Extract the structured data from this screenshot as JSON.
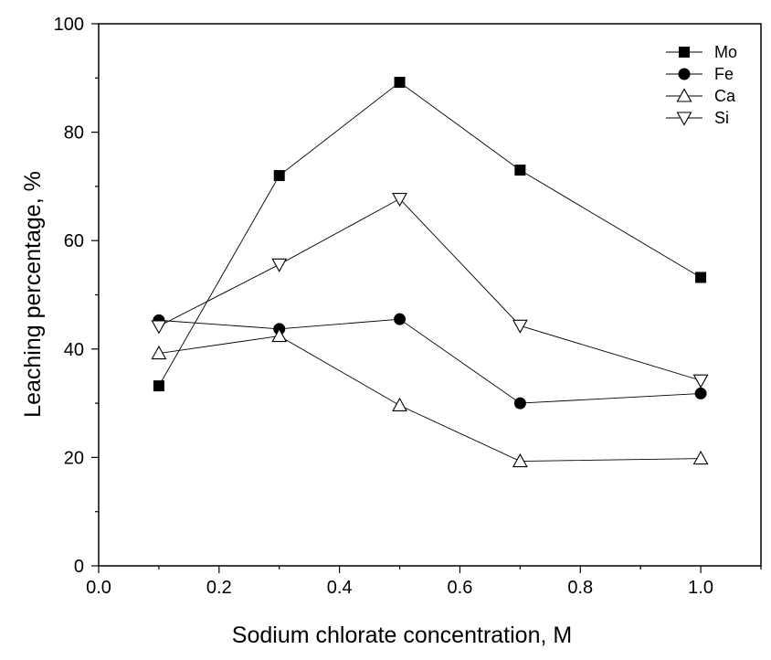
{
  "chart_data": {
    "type": "line",
    "title": "",
    "xlabel": "Sodium chlorate concentration, M",
    "ylabel": "Leaching percentage, %",
    "xlim": [
      0.0,
      1.1
    ],
    "ylim": [
      0,
      100
    ],
    "x_ticks": [
      "0.0",
      "0.2",
      "0.4",
      "0.6",
      "0.8",
      "1.0"
    ],
    "y_ticks": [
      "0",
      "20",
      "40",
      "60",
      "80",
      "100"
    ],
    "grid": false,
    "legend_position": "top-right",
    "x": [
      0.1,
      0.3,
      0.5,
      0.7,
      1.0
    ],
    "series": [
      {
        "name": "Mo",
        "marker": "filled-square",
        "values": [
          33.2,
          72.0,
          89.2,
          73.0,
          53.2
        ]
      },
      {
        "name": "Fe",
        "marker": "filled-circle",
        "values": [
          45.3,
          43.7,
          45.5,
          30.0,
          31.8
        ]
      },
      {
        "name": "Ca",
        "marker": "open-triangle-up",
        "values": [
          39.2,
          42.4,
          29.6,
          19.3,
          19.8
        ]
      },
      {
        "name": "Si",
        "marker": "open-triangle-down",
        "values": [
          44.2,
          55.6,
          67.7,
          44.3,
          34.2
        ]
      }
    ]
  }
}
